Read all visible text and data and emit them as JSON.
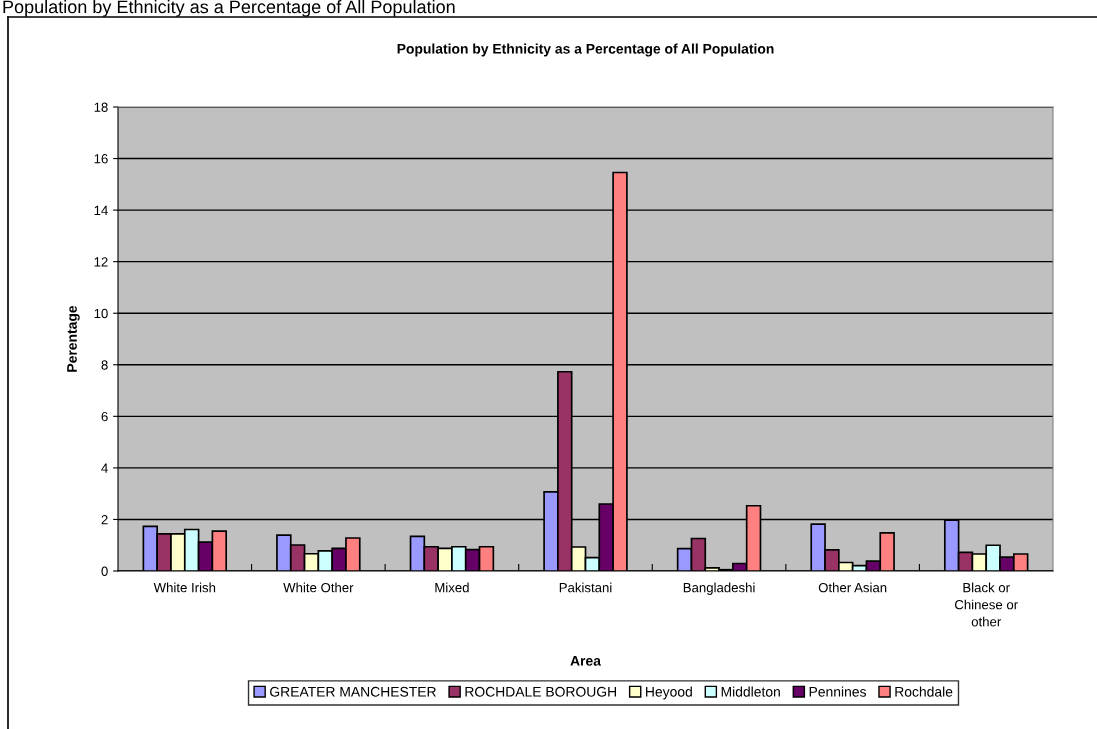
{
  "chart_data": {
    "type": "bar",
    "title": "Population by Ethnicity as a Percentage of All Population",
    "subtitle": "Population by Ethnicity as a Percentage of All Population",
    "xlabel": "Area",
    "ylabel": "Perentage",
    "categories": [
      "White Irish",
      "White Other",
      "Mixed",
      "Pakistani",
      "Bangladeshi",
      "Other Asian",
      "Black or Chinese or other"
    ],
    "series": [
      {
        "name": "GREATER MANCHESTER",
        "color": "#9999ff",
        "values": [
          1.73,
          1.39,
          1.34,
          3.07,
          0.87,
          1.82,
          1.97
        ]
      },
      {
        "name": "ROCHDALE BOROUGH",
        "color": "#993366",
        "values": [
          1.44,
          1.01,
          0.94,
          7.73,
          1.26,
          0.82,
          0.72
        ]
      },
      {
        "name": "Heyood",
        "color": "#ffffcc",
        "values": [
          1.44,
          0.67,
          0.88,
          0.93,
          0.12,
          0.33,
          0.66
        ]
      },
      {
        "name": "Middleton",
        "color": "#ccffff",
        "values": [
          1.61,
          0.78,
          0.94,
          0.52,
          0.05,
          0.21,
          1.0
        ]
      },
      {
        "name": "Pennines",
        "color": "#660066",
        "values": [
          1.12,
          0.88,
          0.83,
          2.6,
          0.29,
          0.38,
          0.54
        ]
      },
      {
        "name": "Rochdale",
        "color": "#ff8080",
        "values": [
          1.55,
          1.28,
          0.94,
          15.46,
          2.53,
          1.48,
          0.66
        ]
      }
    ],
    "ylim": [
      0,
      18
    ],
    "yticks": [
      0,
      2,
      4,
      6,
      8,
      10,
      12,
      14,
      16,
      18
    ],
    "grid": "y",
    "legend": "bottom"
  }
}
